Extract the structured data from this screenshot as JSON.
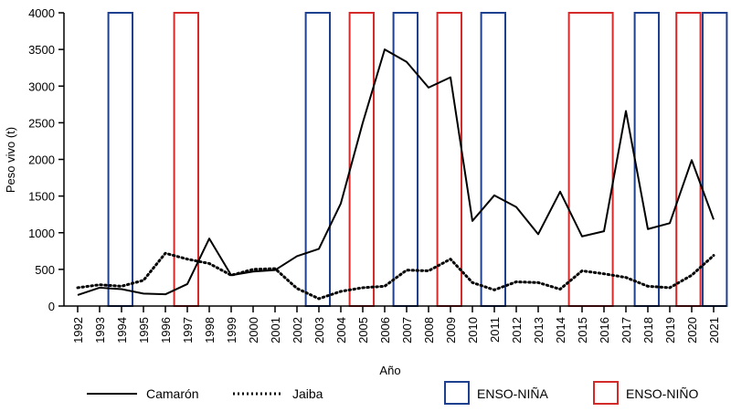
{
  "chart_data": {
    "type": "line",
    "xlabel": "Año",
    "ylabel": "Peso vivo (t)",
    "ylim": [
      0,
      4000
    ],
    "yticks": [
      0,
      500,
      1000,
      1500,
      2000,
      2500,
      3000,
      3500,
      4000
    ],
    "x": [
      1992,
      1993,
      1994,
      1995,
      1996,
      1997,
      1998,
      1999,
      2000,
      2001,
      2002,
      2003,
      2004,
      2005,
      2006,
      2007,
      2008,
      2009,
      2010,
      2011,
      2012,
      2013,
      2014,
      2015,
      2016,
      2017,
      2018,
      2019,
      2020,
      2021
    ],
    "series": [
      {
        "name": "Camarón",
        "style": "solid",
        "color": "#000000",
        "values": [
          150,
          250,
          230,
          170,
          160,
          300,
          920,
          420,
          470,
          490,
          680,
          780,
          1400,
          2500,
          3500,
          3330,
          2980,
          3120,
          1160,
          1510,
          1350,
          980,
          1560,
          950,
          1020,
          2660,
          1050,
          1130,
          1990,
          1180
        ]
      },
      {
        "name": "Jaiba",
        "style": "dotted",
        "color": "#000000",
        "values": [
          250,
          290,
          270,
          350,
          720,
          640,
          580,
          420,
          500,
          510,
          240,
          100,
          200,
          250,
          270,
          490,
          480,
          640,
          320,
          220,
          330,
          320,
          230,
          480,
          440,
          390,
          270,
          250,
          420,
          690
        ]
      }
    ],
    "enso_periods": [
      {
        "type": "ENSO-NIÑA",
        "start": 1993.4,
        "end": 1994.5
      },
      {
        "type": "ENSO-NIÑO",
        "start": 1996.4,
        "end": 1997.5
      },
      {
        "type": "ENSO-NIÑA",
        "start": 2002.4,
        "end": 2003.5
      },
      {
        "type": "ENSO-NIÑO",
        "start": 2004.4,
        "end": 2005.5
      },
      {
        "type": "ENSO-NIÑA",
        "start": 2006.4,
        "end": 2007.5
      },
      {
        "type": "ENSO-NIÑO",
        "start": 2008.4,
        "end": 2009.5
      },
      {
        "type": "ENSO-NIÑA",
        "start": 2010.4,
        "end": 2011.5
      },
      {
        "type": "ENSO-NIÑO",
        "start": 2014.4,
        "end": 2016.4
      },
      {
        "type": "ENSO-NIÑA",
        "start": 2017.4,
        "end": 2018.5
      },
      {
        "type": "ENSO-NIÑO",
        "start": 2019.3,
        "end": 2020.4
      },
      {
        "type": "ENSO-NIÑA",
        "start": 2020.5,
        "end": 2021.6
      }
    ],
    "legend": {
      "position": "bottom",
      "items": [
        "Camarón",
        "Jaiba",
        "ENSO-NIÑA",
        "ENSO-NIÑO"
      ]
    },
    "colors": {
      "nina": "#1f3f8f",
      "nino": "#d42a2a"
    },
    "grid": false
  }
}
